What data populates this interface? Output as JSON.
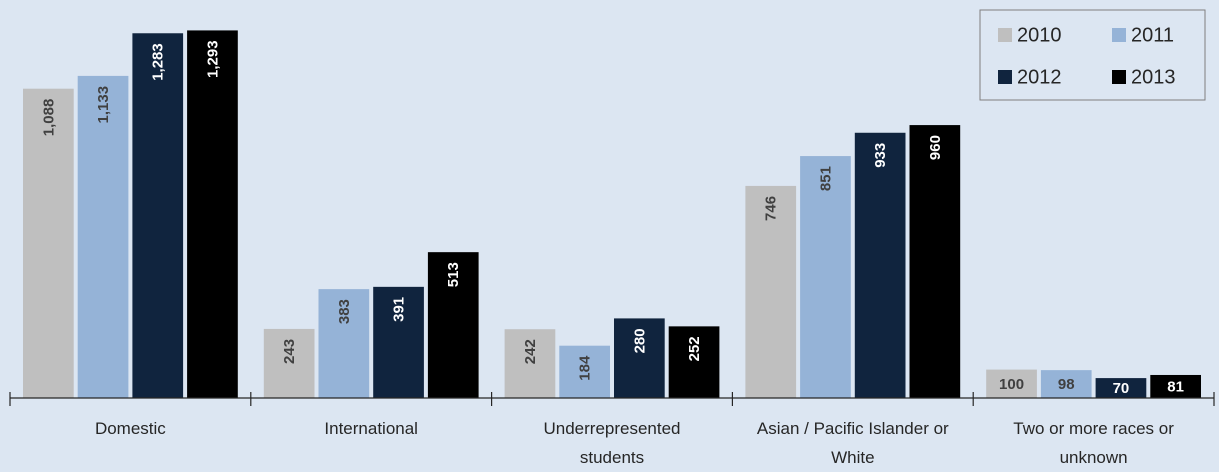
{
  "chart_data": {
    "type": "bar",
    "categories": [
      "Domestic",
      "International",
      "Underrepresented students",
      "Asian / Pacific Islander or White",
      "Two or more races or unknown"
    ],
    "series": [
      {
        "name": "2010",
        "color": "#bfbfbf",
        "values": [
          1088,
          243,
          242,
          746,
          100
        ],
        "value_labels": [
          "1,088",
          "243",
          "242",
          "746",
          "100"
        ]
      },
      {
        "name": "2011",
        "color": "#95b3d7",
        "values": [
          1133,
          383,
          184,
          851,
          98
        ],
        "value_labels": [
          "1,133",
          "383",
          "184",
          "851",
          "98"
        ]
      },
      {
        "name": "2012",
        "color": "#10243e",
        "values": [
          1283,
          391,
          280,
          933,
          70
        ],
        "value_labels": [
          "1,283",
          "391",
          "280",
          "933",
          "70"
        ]
      },
      {
        "name": "2013",
        "color": "#000000",
        "values": [
          1293,
          513,
          252,
          960,
          81
        ],
        "value_labels": [
          "1,293",
          "513",
          "252",
          "960",
          "81"
        ]
      }
    ],
    "ylim": [
      0,
      1400
    ],
    "legend": "top-right"
  }
}
